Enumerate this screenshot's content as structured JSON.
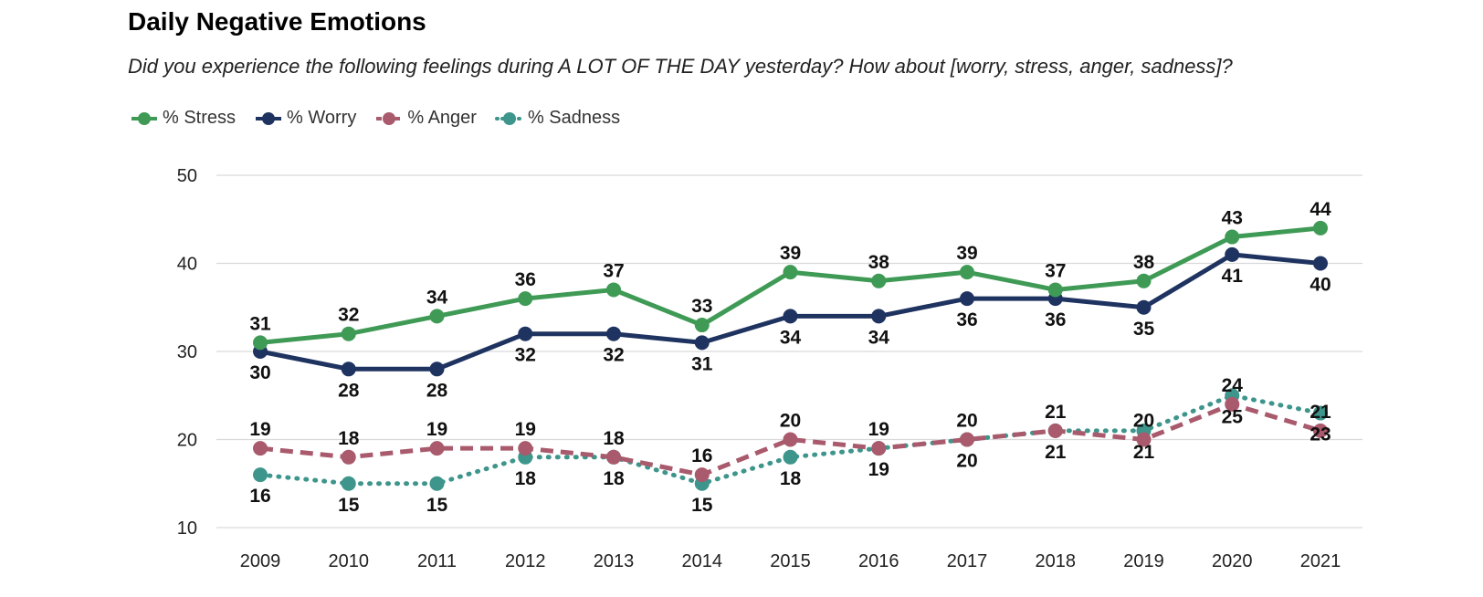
{
  "title": "Daily Negative Emotions",
  "subtitle": "Did you experience the following feelings during A LOT OF THE DAY yesterday? How about [worry, stress, anger, sadness]?",
  "chart_data": {
    "type": "line",
    "x": [
      "2009",
      "2010",
      "2011",
      "2012",
      "2013",
      "2014",
      "2015",
      "2016",
      "2017",
      "2018",
      "2019",
      "2020",
      "2021"
    ],
    "ylim": [
      10,
      50
    ],
    "yticks": [
      10,
      20,
      30,
      40,
      50
    ],
    "grid": true,
    "legend_position": "top-left",
    "series": [
      {
        "name": "% Stress",
        "color": "#3f9a55",
        "style": "solid",
        "label_pos": "above",
        "values": [
          31,
          32,
          34,
          36,
          37,
          33,
          39,
          38,
          39,
          37,
          38,
          43,
          44
        ]
      },
      {
        "name": "% Worry",
        "color": "#1f3360",
        "style": "solid",
        "label_pos": "below",
        "values": [
          30,
          28,
          28,
          32,
          32,
          31,
          34,
          34,
          36,
          36,
          35,
          41,
          40
        ]
      },
      {
        "name": "% Anger",
        "color": "#a95a6c",
        "style": "dashed",
        "label_pos": "above",
        "values": [
          19,
          18,
          19,
          19,
          18,
          16,
          20,
          19,
          20,
          21,
          20,
          24,
          21
        ]
      },
      {
        "name": "% Sadness",
        "color": "#3d958b",
        "style": "dotted",
        "label_pos": "below",
        "values": [
          16,
          15,
          15,
          18,
          18,
          15,
          18,
          19,
          20,
          21,
          21,
          25,
          23
        ]
      }
    ]
  }
}
